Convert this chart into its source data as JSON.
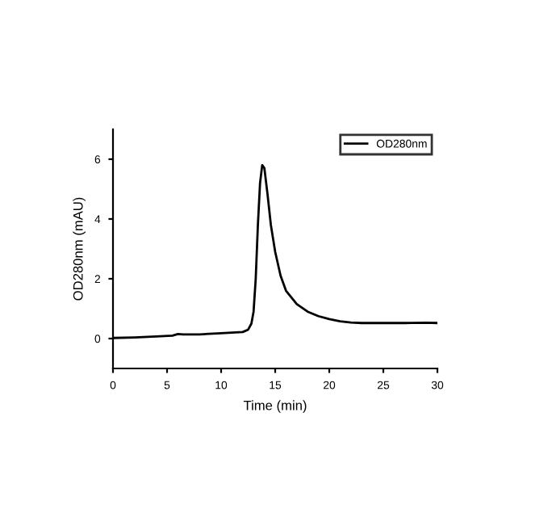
{
  "chart_data": {
    "type": "line",
    "xlabel": "Time (min)",
    "ylabel": "OD280nm (mAU)",
    "legend": "top right",
    "line_style": "solid",
    "grid": false,
    "xlim": [
      0,
      30
    ],
    "xticks": [
      0,
      5,
      10,
      15,
      20,
      25,
      30
    ],
    "ylim": [
      -1,
      7
    ],
    "yticks": [
      0,
      2,
      4,
      6
    ],
    "series": [
      {
        "name": "OD280nm",
        "color": "#000000",
        "x": [
          0,
          2,
          4,
          5.5,
          6,
          6.5,
          8,
          10,
          12,
          12.5,
          12.8,
          13,
          13.2,
          13.4,
          13.6,
          13.8,
          14,
          14.3,
          14.6,
          15,
          15.5,
          16,
          17,
          18,
          19,
          20,
          21,
          22,
          23,
          25,
          27,
          29,
          30
        ],
        "values": [
          0.02,
          0.04,
          0.07,
          0.1,
          0.15,
          0.14,
          0.14,
          0.18,
          0.22,
          0.3,
          0.5,
          0.9,
          2,
          3.8,
          5.2,
          5.8,
          5.7,
          4.8,
          3.8,
          2.9,
          2.1,
          1.6,
          1.15,
          0.9,
          0.75,
          0.65,
          0.58,
          0.54,
          0.52,
          0.52,
          0.52,
          0.53,
          0.52
        ]
      }
    ]
  }
}
